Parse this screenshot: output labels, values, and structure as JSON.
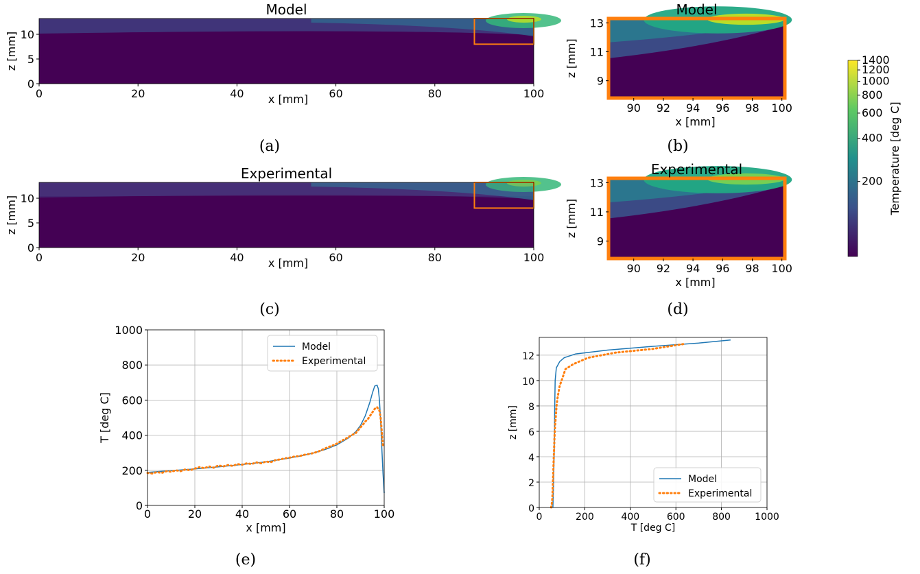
{
  "figure": {
    "captions": [
      "(a)",
      "(b)",
      "(c)",
      "(d)",
      "(e)",
      "(f)"
    ],
    "colorbar": {
      "label": "Temperature [deg C]",
      "ticks": [
        "1400",
        "1200",
        "1000",
        "800",
        "600",
        "400",
        "200"
      ],
      "tick_values": [
        1400,
        1200,
        1000,
        800,
        600,
        400,
        200
      ]
    },
    "colors": {
      "model": "#1f77b4",
      "experimental": "#ff7f0e",
      "box": "#ff7f0e"
    }
  },
  "chart_data": [
    {
      "id": "a",
      "type": "heatmap",
      "title": "Model",
      "xlabel": "x [mm]",
      "ylabel": "z [mm]",
      "xlim": [
        0,
        100
      ],
      "ylim": [
        0,
        13.2
      ],
      "xticks": [
        "0",
        "20",
        "40",
        "60",
        "80",
        "100"
      ],
      "yticks": [
        "0",
        "5",
        "10"
      ],
      "xtick_values": [
        0,
        20,
        40,
        60,
        80,
        100
      ],
      "ytick_values": [
        0,
        5,
        10
      ],
      "zoom_box": {
        "x": [
          88,
          100
        ],
        "z": [
          8,
          13.2
        ]
      }
    },
    {
      "id": "b",
      "type": "heatmap",
      "title": "Model",
      "xlabel": "x [mm]",
      "ylabel": "z [mm]",
      "xlim": [
        88.3,
        100.2
      ],
      "ylim": [
        7.8,
        13.3
      ],
      "xticks": [
        "90",
        "92",
        "94",
        "96",
        "98",
        "100"
      ],
      "yticks": [
        "9",
        "11",
        "13"
      ],
      "xtick_values": [
        90,
        92,
        94,
        96,
        98,
        100
      ],
      "ytick_values": [
        9,
        11,
        13
      ]
    },
    {
      "id": "c",
      "type": "heatmap",
      "title": "Experimental",
      "xlabel": "x [mm]",
      "ylabel": "z [mm]",
      "xlim": [
        0,
        100
      ],
      "ylim": [
        0,
        13.2
      ],
      "xticks": [
        "0",
        "20",
        "40",
        "60",
        "80",
        "100"
      ],
      "yticks": [
        "0",
        "5",
        "10"
      ],
      "xtick_values": [
        0,
        20,
        40,
        60,
        80,
        100
      ],
      "ytick_values": [
        0,
        5,
        10
      ],
      "zoom_box": {
        "x": [
          88,
          100
        ],
        "z": [
          8,
          13.2
        ]
      }
    },
    {
      "id": "d",
      "type": "heatmap",
      "title": "Experimental",
      "xlabel": "x [mm]",
      "ylabel": "z [mm]",
      "xlim": [
        88.3,
        100.2
      ],
      "ylim": [
        7.8,
        13.3
      ],
      "xticks": [
        "90",
        "92",
        "94",
        "96",
        "98",
        "100"
      ],
      "yticks": [
        "9",
        "11",
        "13"
      ],
      "xtick_values": [
        90,
        92,
        94,
        96,
        98,
        100
      ],
      "ytick_values": [
        9,
        11,
        13
      ]
    },
    {
      "id": "e",
      "type": "line",
      "xlabel": "x [mm]",
      "ylabel": "T [deg C]",
      "xlim": [
        0,
        100
      ],
      "ylim": [
        0,
        1000
      ],
      "xticks": [
        "0",
        "20",
        "40",
        "60",
        "80",
        "100"
      ],
      "yticks": [
        "0",
        "200",
        "400",
        "600",
        "800",
        "1000"
      ],
      "xtick_values": [
        0,
        20,
        40,
        60,
        80,
        100
      ],
      "ytick_values": [
        0,
        200,
        400,
        600,
        800,
        1000
      ],
      "grid": true,
      "legend": "top-right",
      "series": [
        {
          "name": "Model",
          "style": "solid",
          "x": [
            0,
            10,
            20,
            30,
            40,
            50,
            60,
            65,
            70,
            75,
            80,
            85,
            88,
            90,
            92,
            94,
            95,
            96,
            97,
            97.5,
            98,
            98.5,
            99,
            99.5,
            100
          ],
          "y": [
            188,
            198,
            208,
            220,
            233,
            248,
            270,
            283,
            298,
            318,
            345,
            385,
            420,
            455,
            510,
            590,
            640,
            680,
            685,
            665,
            600,
            480,
            330,
            180,
            70
          ]
        },
        {
          "name": "Experimental",
          "style": "dotted",
          "x": [
            0,
            2,
            4,
            6,
            8,
            10,
            12,
            14,
            16,
            18,
            20,
            22,
            24,
            26,
            28,
            30,
            32,
            34,
            36,
            38,
            40,
            42,
            44,
            46,
            48,
            50,
            52,
            54,
            56,
            58,
            60,
            62,
            64,
            66,
            68,
            70,
            72,
            74,
            76,
            78,
            80,
            82,
            84,
            86,
            88,
            90,
            91,
            92,
            93,
            94,
            95,
            96,
            97,
            97.5,
            98,
            98.5,
            99,
            99.5
          ],
          "y": [
            185,
            182,
            190,
            185,
            195,
            192,
            200,
            195,
            205,
            200,
            210,
            218,
            212,
            222,
            215,
            228,
            222,
            230,
            225,
            235,
            232,
            240,
            236,
            245,
            240,
            250,
            246,
            258,
            262,
            268,
            272,
            278,
            280,
            288,
            292,
            298,
            306,
            318,
            330,
            340,
            352,
            368,
            382,
            398,
            412,
            445,
            460,
            478,
            490,
            510,
            530,
            550,
            560,
            548,
            540,
            500,
            420,
            330
          ]
        }
      ]
    },
    {
      "id": "f",
      "type": "line",
      "xlabel": "T [deg C]",
      "ylabel": "z [mm]",
      "xlim": [
        0,
        1000
      ],
      "ylim": [
        0,
        13.4
      ],
      "xticks": [
        "0",
        "200",
        "400",
        "600",
        "800",
        "1000"
      ],
      "yticks": [
        "0",
        "2",
        "4",
        "6",
        "8",
        "10",
        "12"
      ],
      "xtick_values": [
        0,
        200,
        400,
        600,
        800,
        1000
      ],
      "ytick_values": [
        0,
        2,
        4,
        6,
        8,
        10,
        12
      ],
      "grid": true,
      "legend": "bottom-right",
      "series": [
        {
          "name": "Model",
          "style": "solid",
          "x": [
            60,
            63,
            65,
            67,
            68,
            70,
            75,
            90,
            110,
            160,
            300,
            500,
            700,
            840
          ],
          "y": [
            0,
            2,
            4,
            6,
            8,
            10,
            11,
            11.5,
            11.8,
            12.1,
            12.4,
            12.7,
            12.95,
            13.2
          ]
        },
        {
          "name": "Experimental",
          "style": "dotted",
          "x": [
            52,
            55,
            57,
            58,
            59,
            60,
            61,
            62,
            63,
            64,
            65,
            66,
            67,
            68,
            70,
            72,
            74,
            76,
            80,
            85,
            90,
            100,
            115,
            150,
            215,
            335,
            500,
            640
          ],
          "y": [
            0,
            0.3,
            0.6,
            1.0,
            1.5,
            2.0,
            2.5,
            3.0,
            3.5,
            4.0,
            4.5,
            5.0,
            5.5,
            6.0,
            6.5,
            7.0,
            7.5,
            8.0,
            8.6,
            9.1,
            9.6,
            10.1,
            10.9,
            11.3,
            11.8,
            12.2,
            12.5,
            12.9
          ]
        }
      ]
    }
  ]
}
